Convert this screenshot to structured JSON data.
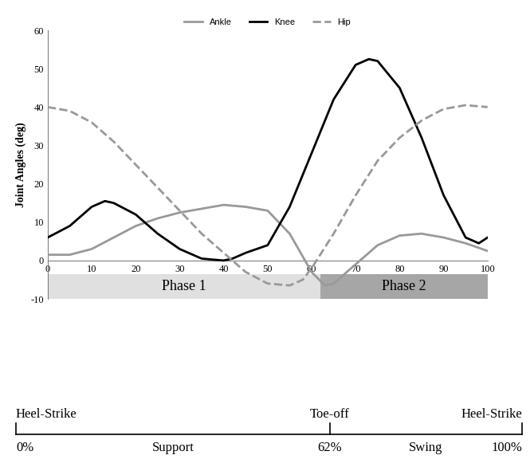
{
  "chart_data": {
    "type": "line",
    "y_label": "Joint Angles (deg)",
    "xlim": [
      0,
      100
    ],
    "xticks": [
      0,
      10,
      20,
      30,
      40,
      50,
      60,
      70,
      80,
      90,
      100
    ],
    "ylim": [
      -10,
      60
    ],
    "yticks": [
      -10,
      0,
      10,
      20,
      30,
      40,
      50,
      60
    ],
    "grid": false,
    "legend": "upper center",
    "series": [
      {
        "name": "Ankle",
        "color": "#999999",
        "line_style": "solid",
        "x": [
          0,
          5,
          10,
          15,
          20,
          25,
          30,
          35,
          40,
          45,
          50,
          55,
          60,
          63,
          65,
          70,
          75,
          80,
          85,
          90,
          95,
          100
        ],
        "values": [
          1.5,
          1.5,
          3,
          6,
          9,
          11,
          12.5,
          13.5,
          14.5,
          14,
          13,
          7,
          -3,
          -6.5,
          -6,
          -1,
          4,
          6.5,
          7,
          6,
          4.5,
          2.5
        ]
      },
      {
        "name": "Knee",
        "color": "#000000",
        "line_style": "solid",
        "x": [
          0,
          5,
          10,
          13,
          15,
          20,
          25,
          30,
          35,
          40,
          42,
          45,
          50,
          55,
          60,
          65,
          70,
          73,
          75,
          80,
          85,
          90,
          95,
          98,
          100
        ],
        "values": [
          6,
          9,
          14,
          15.5,
          15,
          12,
          7,
          3,
          0.5,
          0,
          0.5,
          2,
          4,
          14,
          28,
          42,
          51,
          52.5,
          52,
          45,
          32,
          17,
          6,
          4.5,
          6
        ]
      },
      {
        "name": "Hip",
        "color": "#999999",
        "line_style": "dashed",
        "x": [
          0,
          5,
          10,
          15,
          20,
          25,
          30,
          35,
          40,
          45,
          50,
          55,
          58,
          60,
          65,
          70,
          75,
          80,
          85,
          90,
          95,
          100
        ],
        "values": [
          40,
          39,
          36,
          31,
          25,
          19,
          13,
          7,
          2,
          -3,
          -6,
          -6.5,
          -5,
          -2,
          7,
          17,
          26,
          32,
          36.5,
          39.5,
          40.5,
          40
        ]
      }
    ],
    "phases": [
      {
        "label": "Phase 1",
        "start": 0,
        "end": 62,
        "color": "#e0e0e0"
      },
      {
        "label": "Phase 2",
        "start": 62,
        "end": 100,
        "color": "#a6a6a6"
      }
    ],
    "timeline": {
      "events": [
        {
          "label": "Heel-Strike",
          "x": 0
        },
        {
          "label": "Toe-off",
          "x": 62
        },
        {
          "label": "Heel-Strike",
          "x": 100
        }
      ],
      "ticks": [
        {
          "value": 0,
          "label": "0%"
        },
        {
          "value": 62,
          "label": "62%"
        },
        {
          "value": 100,
          "label": "100%"
        }
      ],
      "periods": [
        {
          "label": "Support",
          "start": 0,
          "end": 62
        },
        {
          "label": "Swing",
          "start": 62,
          "end": 100
        }
      ]
    }
  }
}
